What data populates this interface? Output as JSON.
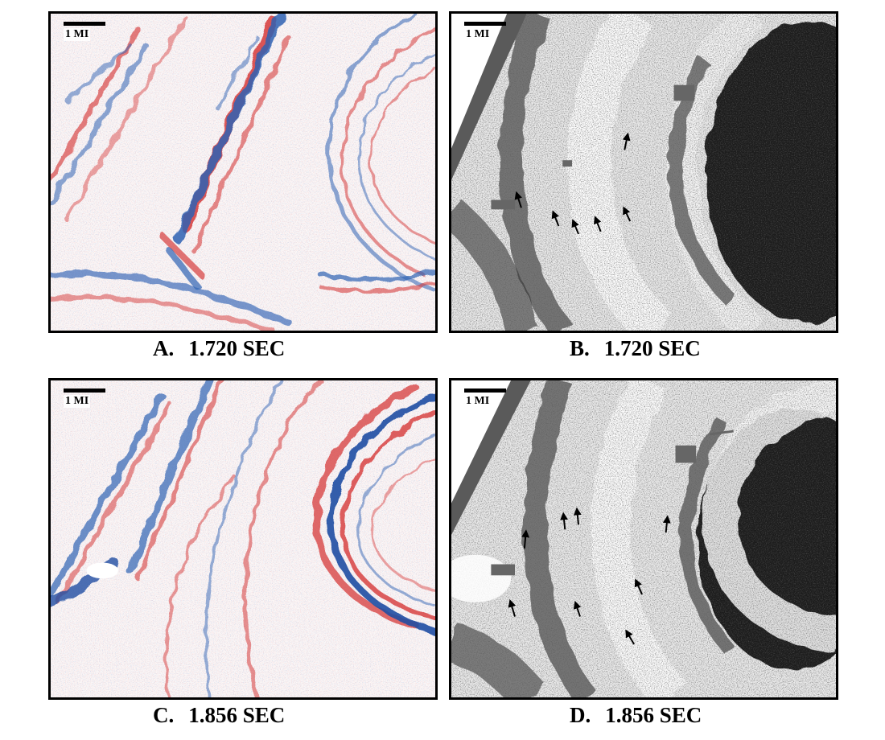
{
  "scale_label": "1 MI",
  "panels": [
    {
      "letter": "A.",
      "time": "1.720 SEC",
      "style": "seismic-color"
    },
    {
      "letter": "B.",
      "time": "1.720 SEC",
      "style": "grayscale-attribute"
    },
    {
      "letter": "C.",
      "time": "1.856 SEC",
      "style": "seismic-color"
    },
    {
      "letter": "D.",
      "time": "1.856 SEC",
      "style": "grayscale-attribute"
    }
  ],
  "colors": {
    "positive": "#d63a3a",
    "negative": "#2f62b3",
    "background": "#ffffff",
    "dark": "#1a1a1a",
    "frame": "#000000"
  }
}
